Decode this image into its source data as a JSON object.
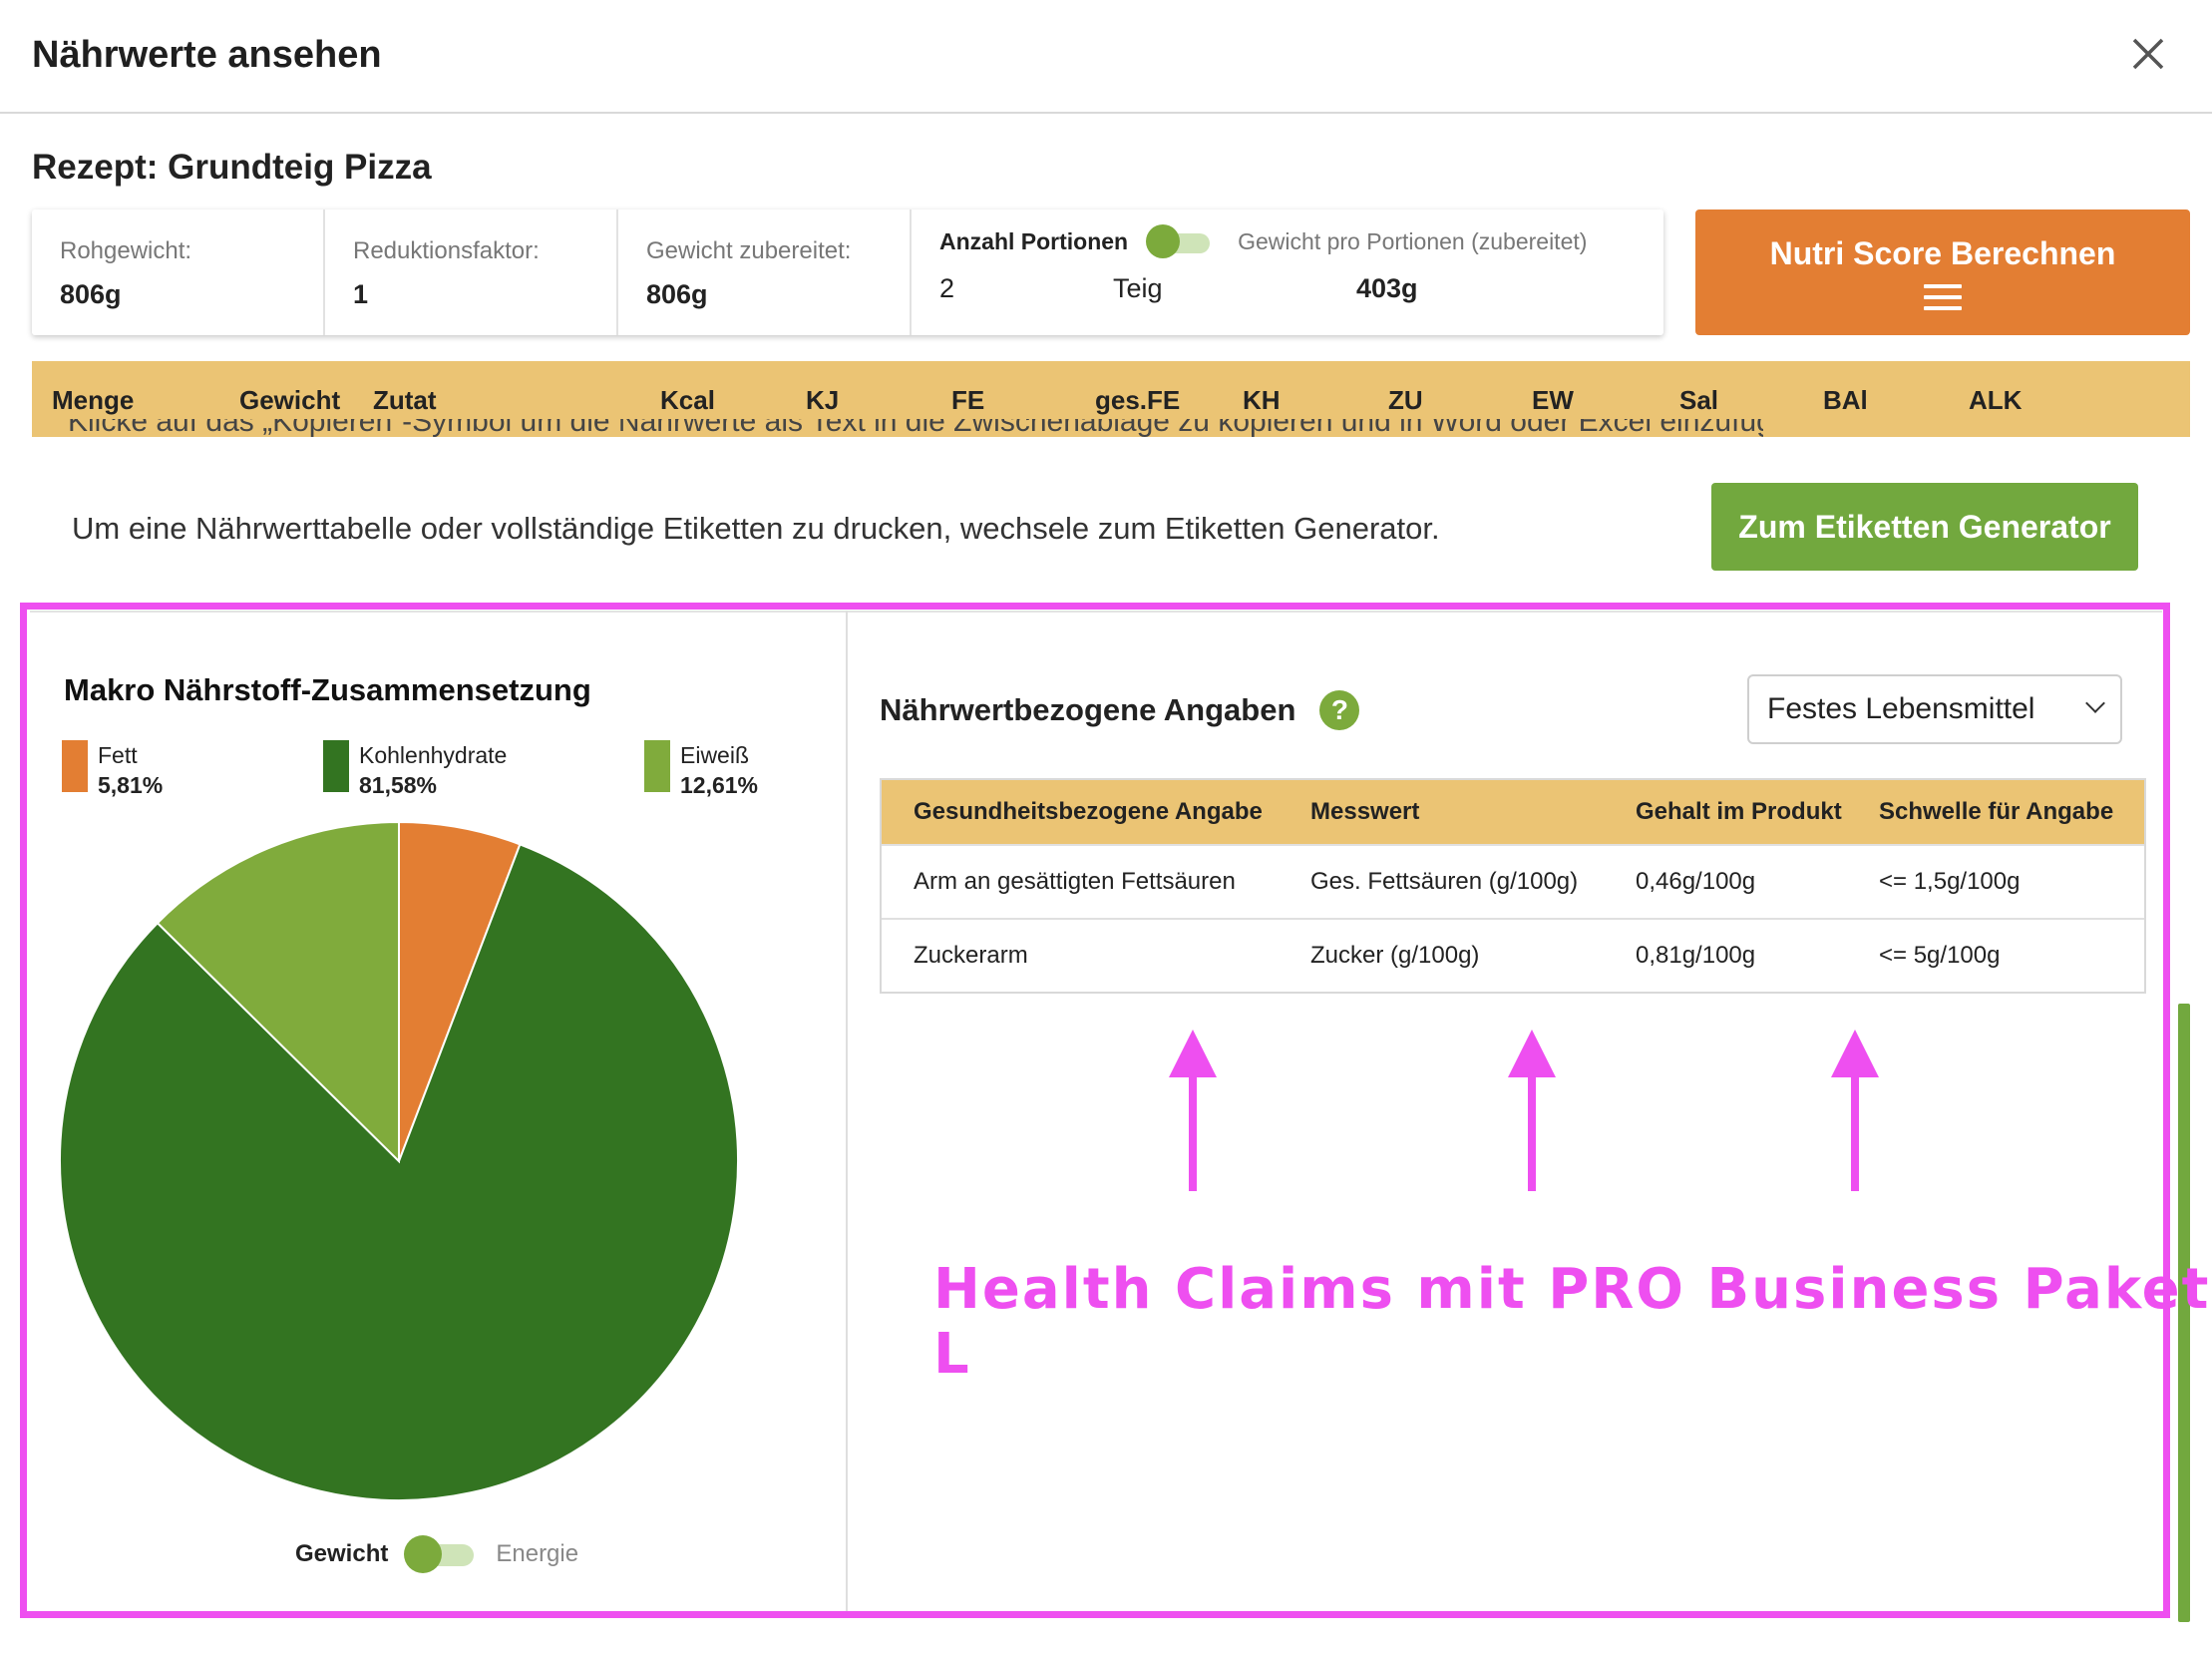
{
  "dialog": {
    "title": "Nährwerte ansehen",
    "close_icon": "close-icon"
  },
  "recipe": {
    "title": "Rezept: Grundteig Pizza"
  },
  "info": {
    "rohgewicht_label": "Rohgewicht:",
    "rohgewicht_value": "806g",
    "reduktion_label": "Reduktionsfaktor:",
    "reduktion_value": "1",
    "zubereitet_label": "Gewicht zubereitet:",
    "zubereitet_value": "806g",
    "portionen_label": "Anzahl Portionen",
    "portion_weight_label": "Gewicht pro Portionen (zubereitet)",
    "portionen_value": "2",
    "portionen_unit": "Teig",
    "portion_weight_value": "403g"
  },
  "nutri_button": {
    "label": "Nutri Score Berechnen",
    "icon": "hamburger-menu-icon"
  },
  "table_header": [
    "Menge",
    "Gewicht",
    "Zutat",
    "Kcal",
    "KJ",
    "FE",
    "ges.FE",
    "KH",
    "ZU",
    "EW",
    "Sal",
    "BAl",
    "ALK"
  ],
  "print_info": {
    "text": "Um eine Nährwerttabelle oder vollständige Etiketten zu drucken, wechsele zum Etiketten Generator.",
    "cut_text": "Klicke auf das „Kopieren“-Symbol um die Nährwerte als Text in die Zwischenablage zu kopieren und in Word oder Excel einzufügen.",
    "button_label": "Zum Etiketten Generator"
  },
  "macro": {
    "title": "Makro Nährstoff-Zusammensetzung",
    "toggle_on_label": "Gewicht",
    "toggle_off_label": "Energie"
  },
  "chart_data": {
    "type": "pie",
    "title": "Makro Nährstoff-Zusammensetzung",
    "legend_placement": "top",
    "slices": [
      {
        "name": "Fett",
        "label": "5,81%",
        "value": 5.81,
        "color": "#e37e33"
      },
      {
        "name": "Kohlenhydrate",
        "label": "81,58%",
        "value": 81.58,
        "color": "#337421"
      },
      {
        "name": "Eiweiß",
        "label": "12,61%",
        "value": 12.61,
        "color": "#80ab3c"
      }
    ]
  },
  "claims": {
    "title": "Nährwertbezogene Angaben",
    "help_icon": "question-mark-icon",
    "help_glyph": "?",
    "select_value": "Festes Lebensmittel",
    "headers": [
      "Gesundheitsbezogene Angabe",
      "Messwert",
      "Gehalt im Produkt",
      "Schwelle für Angabe"
    ],
    "rows": [
      [
        "Arm an gesättigten Fettsäuren",
        "Ges. Fettsäuren (g/100g)",
        "0,46g/100g",
        "<= 1,5g/100g"
      ],
      [
        "Zuckerarm",
        "Zucker (g/100g)",
        "0,81g/100g",
        "<= 5g/100g"
      ]
    ]
  },
  "promo": {
    "text": "Health Claims mit PRO Business Paket L",
    "color": "#ee4ff0"
  },
  "colors": {
    "accent_orange": "#e37e33",
    "accent_green": "#72a83e",
    "table_header": "#ebc474",
    "highlight": "#ee4ff0"
  }
}
